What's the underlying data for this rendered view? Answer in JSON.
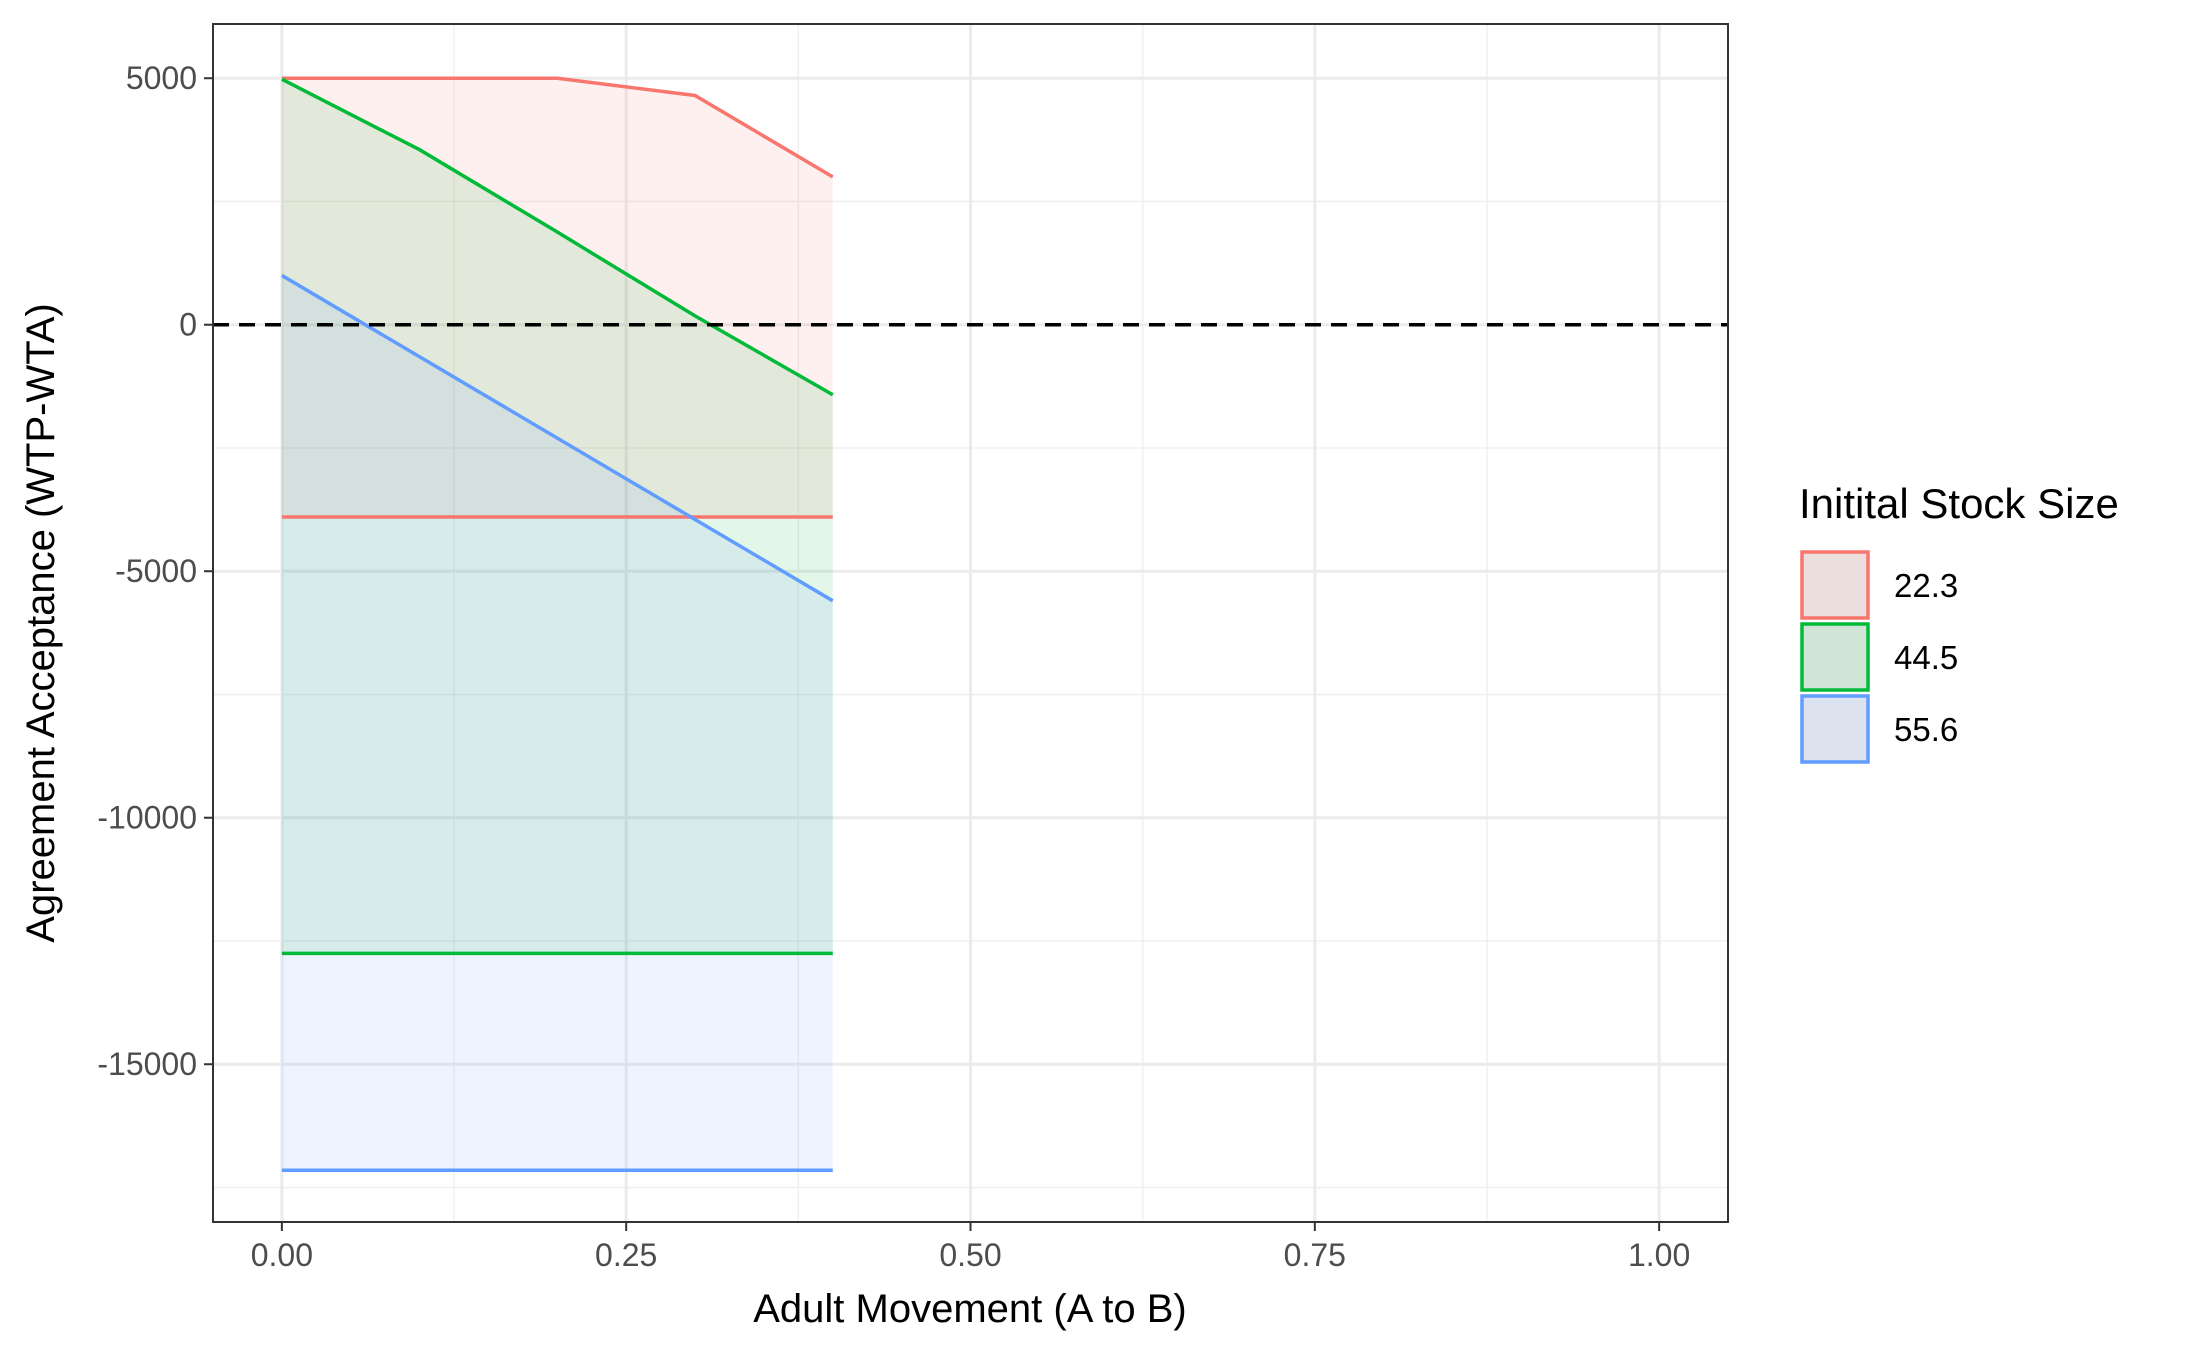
{
  "chart_data": {
    "type": "area",
    "title": "",
    "xlabel": "Adult Movement (A to B)",
    "ylabel": "Agreement Acceptance (WTP-WTA)",
    "xlim": [
      -0.05,
      1.05
    ],
    "ylim": [
      -18200,
      6100
    ],
    "x_ticks": [
      0.0,
      0.25,
      0.5,
      0.75,
      1.0
    ],
    "x_tick_labels": [
      "0.00",
      "0.25",
      "0.50",
      "0.75",
      "1.00"
    ],
    "y_ticks": [
      5000,
      0,
      -5000,
      -10000,
      -15000
    ],
    "y_tick_labels": [
      "5000",
      "0",
      "-5000",
      "-10000",
      "-15000"
    ],
    "grid": true,
    "reference_line": {
      "y": 0,
      "style": "dashed",
      "color": "#000000"
    },
    "legend": {
      "title": "Initital Stock Size",
      "position": "right"
    },
    "series": [
      {
        "name": "22.3",
        "color": "#F8766D",
        "x": [
          0.0,
          0.1,
          0.2,
          0.3,
          0.4
        ],
        "upper": [
          5000,
          5000,
          5000,
          4650,
          3000
        ],
        "lower": [
          -3900,
          -3900,
          -3900,
          -3900,
          -3900
        ]
      },
      {
        "name": "44.5",
        "color": "#00BA38",
        "x": [
          0.0,
          0.1,
          0.2,
          0.3,
          0.4
        ],
        "upper": [
          4980,
          3550,
          1880,
          180,
          -1420
        ],
        "lower": [
          -12750,
          -12750,
          -12750,
          -12750,
          -12750
        ]
      },
      {
        "name": "55.6",
        "color": "#619CFF",
        "x": [
          0.0,
          0.1,
          0.2,
          0.3,
          0.4
        ],
        "upper": [
          1000,
          -650,
          -2300,
          -3950,
          -5600
        ],
        "lower": [
          -17150,
          -17150,
          -17150,
          -17150,
          -17150
        ]
      }
    ]
  }
}
